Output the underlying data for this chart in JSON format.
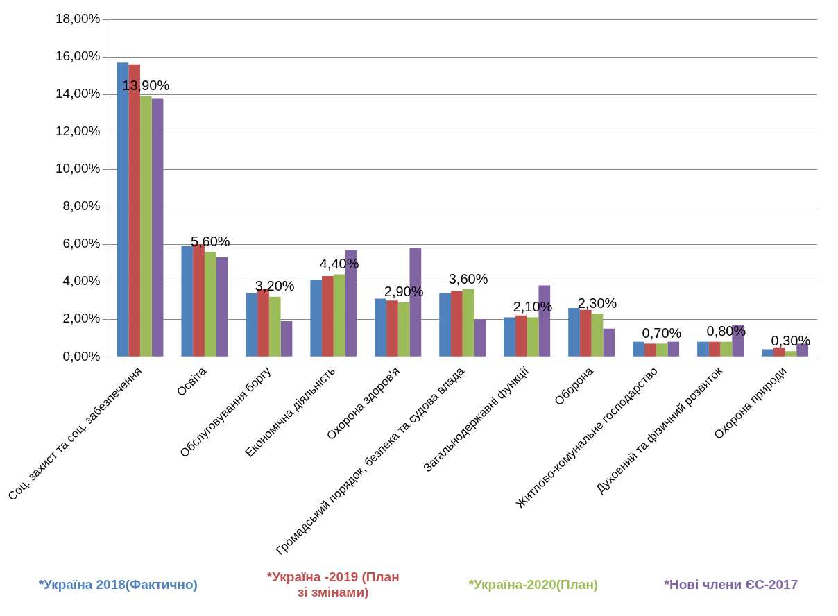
{
  "chart_data": {
    "type": "bar",
    "categories": [
      "Соц. захист та соц. забезпечення",
      "Освіта",
      "Обслуговування боргу",
      "Економічна діяльність",
      "Охорона здоров'я",
      "Громадський порядок, безпека та судова влада",
      "Загальнодержавні функції",
      "Оборона",
      "Житлово-комунальне господарство",
      "Духовний та фізичний розвиток",
      "Охорона природи"
    ],
    "series": [
      {
        "name": "*Україна 2018(Фактично)",
        "color": "#4f81bd",
        "values": [
          15.7,
          5.9,
          3.4,
          4.1,
          3.1,
          3.4,
          2.1,
          2.6,
          0.8,
          0.8,
          0.4
        ]
      },
      {
        "name": "*Україна -2019 (План зі змінами)",
        "color": "#c0504d",
        "values": [
          15.6,
          6.0,
          3.6,
          4.3,
          3.0,
          3.5,
          2.2,
          2.5,
          0.7,
          0.8,
          0.5
        ]
      },
      {
        "name": "*Україна-2020(План)",
        "color": "#9bbb59",
        "values": [
          13.9,
          5.6,
          3.2,
          4.4,
          2.9,
          3.6,
          2.1,
          2.3,
          0.7,
          0.8,
          0.3
        ],
        "value_labels": [
          "13,90%",
          "5,60%",
          "3,20%",
          "4,40%",
          "2,90%",
          "3,60%",
          "2,10%",
          "2,30%",
          "0,70%",
          "0,80%",
          "0,30%"
        ]
      },
      {
        "name": "*Нові члени ЄС-2017",
        "color": "#8064a2",
        "values": [
          13.8,
          5.3,
          1.9,
          5.7,
          5.8,
          2.0,
          3.8,
          1.5,
          0.8,
          1.7,
          0.7
        ]
      }
    ],
    "ylim": [
      0,
      18
    ],
    "yticks": [
      {
        "value": 0,
        "label": "0,00%"
      },
      {
        "value": 2,
        "label": "2,00%"
      },
      {
        "value": 4,
        "label": "4,00%"
      },
      {
        "value": 6,
        "label": "6,00%"
      },
      {
        "value": 8,
        "label": "8,00%"
      },
      {
        "value": 10,
        "label": "10,00%"
      },
      {
        "value": 12,
        "label": "12,00%"
      },
      {
        "value": 14,
        "label": "14,00%"
      },
      {
        "value": 16,
        "label": "16,00%"
      },
      {
        "value": 18,
        "label": "18,00%"
      }
    ],
    "grid": "y",
    "legend": "bottom"
  }
}
